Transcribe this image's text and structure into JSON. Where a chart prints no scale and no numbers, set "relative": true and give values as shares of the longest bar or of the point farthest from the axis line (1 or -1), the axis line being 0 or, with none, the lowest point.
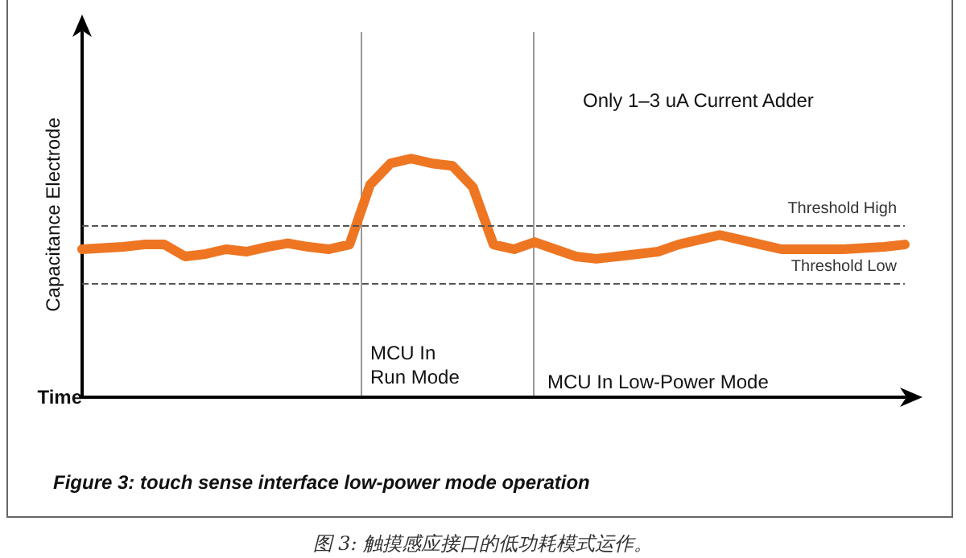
{
  "chart_data": {
    "type": "line",
    "relative": true,
    "title": "Figure 3: touch sense interface low-power mode operation",
    "subtitle": "图 3: 触摸感应接口的低功耗模式运作。",
    "xlabel": "Time",
    "ylabel": "Capacitance Electrode",
    "categories": [
      null,
      null,
      null,
      null,
      null,
      null,
      null,
      null,
      null,
      null,
      null,
      null,
      null,
      null,
      null,
      null,
      null,
      null,
      null,
      null,
      null,
      null,
      null,
      null,
      null,
      null,
      null,
      null,
      null,
      null,
      null,
      null,
      null,
      null,
      null,
      null,
      null,
      null,
      null,
      null,
      null
    ],
    "marker": "none",
    "line_style": "solid",
    "series": [
      {
        "color": "#ee7623",
        "values": [
          0.62,
          0.625,
          0.63,
          0.64,
          0.64,
          0.59,
          0.6,
          0.62,
          0.61,
          0.63,
          0.645,
          0.63,
          0.62,
          0.64,
          0.89,
          0.98,
          1,
          0.98,
          0.97,
          0.88,
          0.64,
          0.62,
          0.65,
          0.62,
          0.59,
          0.58,
          0.59,
          0.6,
          0.61,
          0.64,
          0.66,
          0.68,
          0.66,
          0.64,
          0.62,
          0.62,
          0.62,
          0.62,
          0.625,
          0.63,
          0.64
        ]
      }
    ],
    "ref_lines": [
      {
        "axis": "y",
        "value": 0.72,
        "label": "Threshold High",
        "color": "#555555",
        "line_style": "dashed"
      },
      {
        "axis": "y",
        "value": 0.48,
        "label": "Threshold Low",
        "color": "#555555",
        "line_style": "dashed"
      }
    ],
    "annotations": [
      "Only 1–3 uA Current Adder",
      "MCU In\nRun Mode",
      "MCU In Low-Power Mode"
    ]
  }
}
